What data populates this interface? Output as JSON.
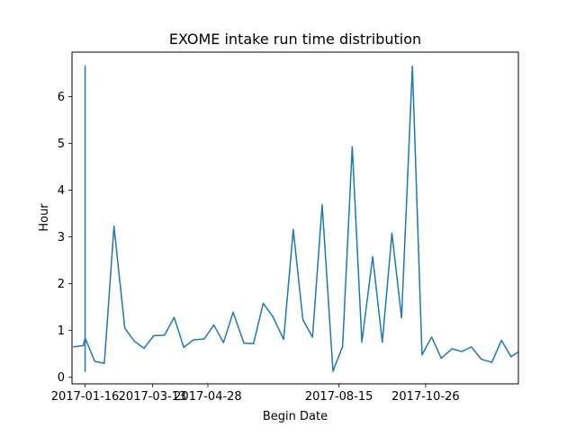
{
  "chart_data": {
    "type": "line",
    "title": "EXOME intake run time distribution",
    "xlabel": "Begin Date",
    "ylabel": "Hour",
    "x_tick_labels": [
      "2017-01-16",
      "2017-03-13",
      "2017-04-28",
      "2017-08-15",
      "2017-10-26"
    ],
    "y_tick_labels": [
      "0",
      "1",
      "2",
      "3",
      "4",
      "5",
      "6"
    ],
    "xlim": [
      -10.9,
      360.1
    ],
    "ylim": [
      -0.14,
      6.95
    ],
    "grid": false,
    "legend": "none",
    "series": [
      {
        "color": "#1f77b4",
        "x": [
          -10,
          -1.5,
          0,
          0,
          0,
          0,
          0,
          8,
          16,
          24,
          33,
          41,
          49,
          57,
          66,
          74,
          82,
          90,
          99,
          107,
          115,
          123,
          132,
          140,
          148,
          156,
          165,
          173,
          181,
          189,
          197,
          206,
          214,
          222,
          230,
          239,
          247,
          255,
          263,
          272,
          280,
          288,
          296,
          305,
          313,
          321,
          329,
          338,
          346,
          354,
          360
        ],
        "y": [
          0.65,
          0.68,
          0.84,
          3.15,
          0.13,
          6.65,
          0.84,
          0.34,
          0.3,
          3.23,
          1.05,
          0.77,
          0.62,
          0.89,
          0.9,
          1.28,
          0.64,
          0.8,
          0.82,
          1.12,
          0.74,
          1.39,
          0.73,
          0.72,
          1.58,
          1.3,
          0.81,
          3.16,
          1.23,
          0.86,
          3.69,
          0.13,
          0.66,
          4.93,
          0.75,
          2.58,
          0.75,
          3.08,
          1.27,
          6.65,
          0.48,
          0.86,
          0.41,
          0.61,
          0.55,
          0.65,
          0.39,
          0.32,
          0.79,
          0.44,
          0.54
        ]
      },
      {
        "color": "#ff7f0e",
        "x": [
          0,
          0
        ],
        "y": [
          0.84,
          0.86
        ]
      },
      {
        "color": "#2ca02c",
        "x": [
          0,
          0
        ],
        "y": [
          0.84,
          0.86
        ]
      }
    ]
  }
}
